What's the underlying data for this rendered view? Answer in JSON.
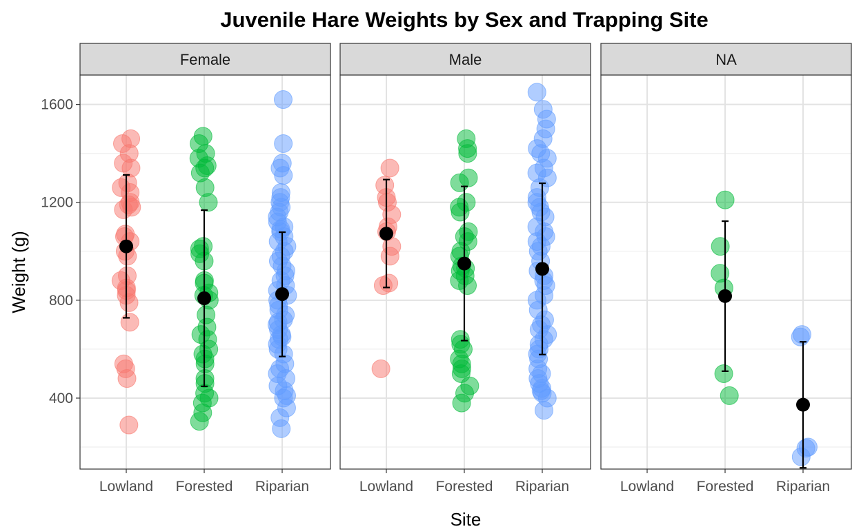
{
  "chart_data": {
    "type": "scatter",
    "title": "Juvenile Hare Weights by Sex and Trapping Site",
    "xlabel": "Site",
    "ylabel": "Weight (g)",
    "categories": [
      "Lowland",
      "Forested",
      "Riparian"
    ],
    "yticks": [
      400,
      800,
      1200,
      1600
    ],
    "ylim": [
      110,
      1720
    ],
    "grid": true,
    "colors": {
      "Lowland": "#F8766D",
      "Forested": "#00BA38",
      "Riparian": "#619CFF",
      "summary": "#000000"
    },
    "panels": [
      {
        "label": "Female",
        "groups": [
          {
            "site": "Lowland",
            "mean": 1020,
            "sd_low": 728,
            "sd_high": 1312,
            "points": [
              290,
              480,
              520,
              540,
              710,
              790,
              820,
              840,
              850,
              880,
              900,
              980,
              1000,
              1040,
              1060,
              1070,
              1170,
              1180,
              1190,
              1200,
              1240,
              1260,
              1280,
              1340,
              1360,
              1400,
              1440,
              1460
            ]
          },
          {
            "site": "Forested",
            "mean": 808,
            "sd_low": 448,
            "sd_high": 1168,
            "points": [
              305,
              340,
              380,
              400,
              420,
              460,
              480,
              540,
              560,
              580,
              600,
              640,
              660,
              690,
              740,
              800,
              820,
              830,
              870,
              880,
              960,
              990,
              1010,
              1020,
              1200,
              1260,
              1320,
              1340,
              1350,
              1380,
              1400,
              1440,
              1470
            ]
          },
          {
            "site": "Riparian",
            "mean": 825,
            "sd_low": 570,
            "sd_high": 1078,
            "points": [
              275,
              320,
              360,
              400,
              410,
              430,
              450,
              480,
              500,
              520,
              540,
              580,
              600,
              620,
              640,
              650,
              660,
              680,
              700,
              710,
              720,
              740,
              760,
              780,
              800,
              820,
              840,
              860,
              880,
              900,
              920,
              940,
              960,
              980,
              1000,
              1020,
              1040,
              1060,
              1080,
              1090,
              1100,
              1120,
              1140,
              1160,
              1180,
              1200,
              1220,
              1240,
              1310,
              1340,
              1360,
              1440,
              1620
            ]
          }
        ]
      },
      {
        "label": "Male",
        "groups": [
          {
            "site": "Lowland",
            "mean": 1072,
            "sd_low": 852,
            "sd_high": 1293,
            "points": [
              520,
              860,
              870,
              980,
              1020,
              1080,
              1100,
              1150,
              1200,
              1220,
              1270,
              1340
            ]
          },
          {
            "site": "Forested",
            "mean": 950,
            "sd_low": 635,
            "sd_high": 1265,
            "points": [
              380,
              420,
              450,
              500,
              520,
              540,
              560,
              600,
              620,
              640,
              860,
              880,
              900,
              920,
              930,
              940,
              980,
              1000,
              1040,
              1060,
              1080,
              1160,
              1180,
              1200,
              1280,
              1300,
              1400,
              1420,
              1460
            ]
          },
          {
            "site": "Riparian",
            "mean": 928,
            "sd_low": 578,
            "sd_high": 1278,
            "points": [
              350,
              400,
              420,
              430,
              440,
              460,
              480,
              500,
              520,
              560,
              580,
              600,
              620,
              640,
              660,
              680,
              700,
              720,
              760,
              800,
              820,
              860,
              880,
              900,
              920,
              960,
              1000,
              1020,
              1040,
              1060,
              1080,
              1100,
              1140,
              1160,
              1180,
              1200,
              1220,
              1260,
              1300,
              1320,
              1340,
              1380,
              1400,
              1420,
              1460,
              1500,
              1540,
              1580,
              1650
            ]
          }
        ]
      },
      {
        "label": "NA",
        "groups": [
          {
            "site": "Lowland",
            "mean": null,
            "sd_low": null,
            "sd_high": null,
            "points": []
          },
          {
            "site": "Forested",
            "mean": 817,
            "sd_low": 510,
            "sd_high": 1123,
            "points": [
              410,
              500,
              850,
              910,
              1020,
              1210
            ]
          },
          {
            "site": "Riparian",
            "mean": 373,
            "sd_low": 115,
            "sd_high": 630,
            "points": [
              160,
              195,
              200,
              650,
              660
            ]
          }
        ]
      }
    ]
  }
}
